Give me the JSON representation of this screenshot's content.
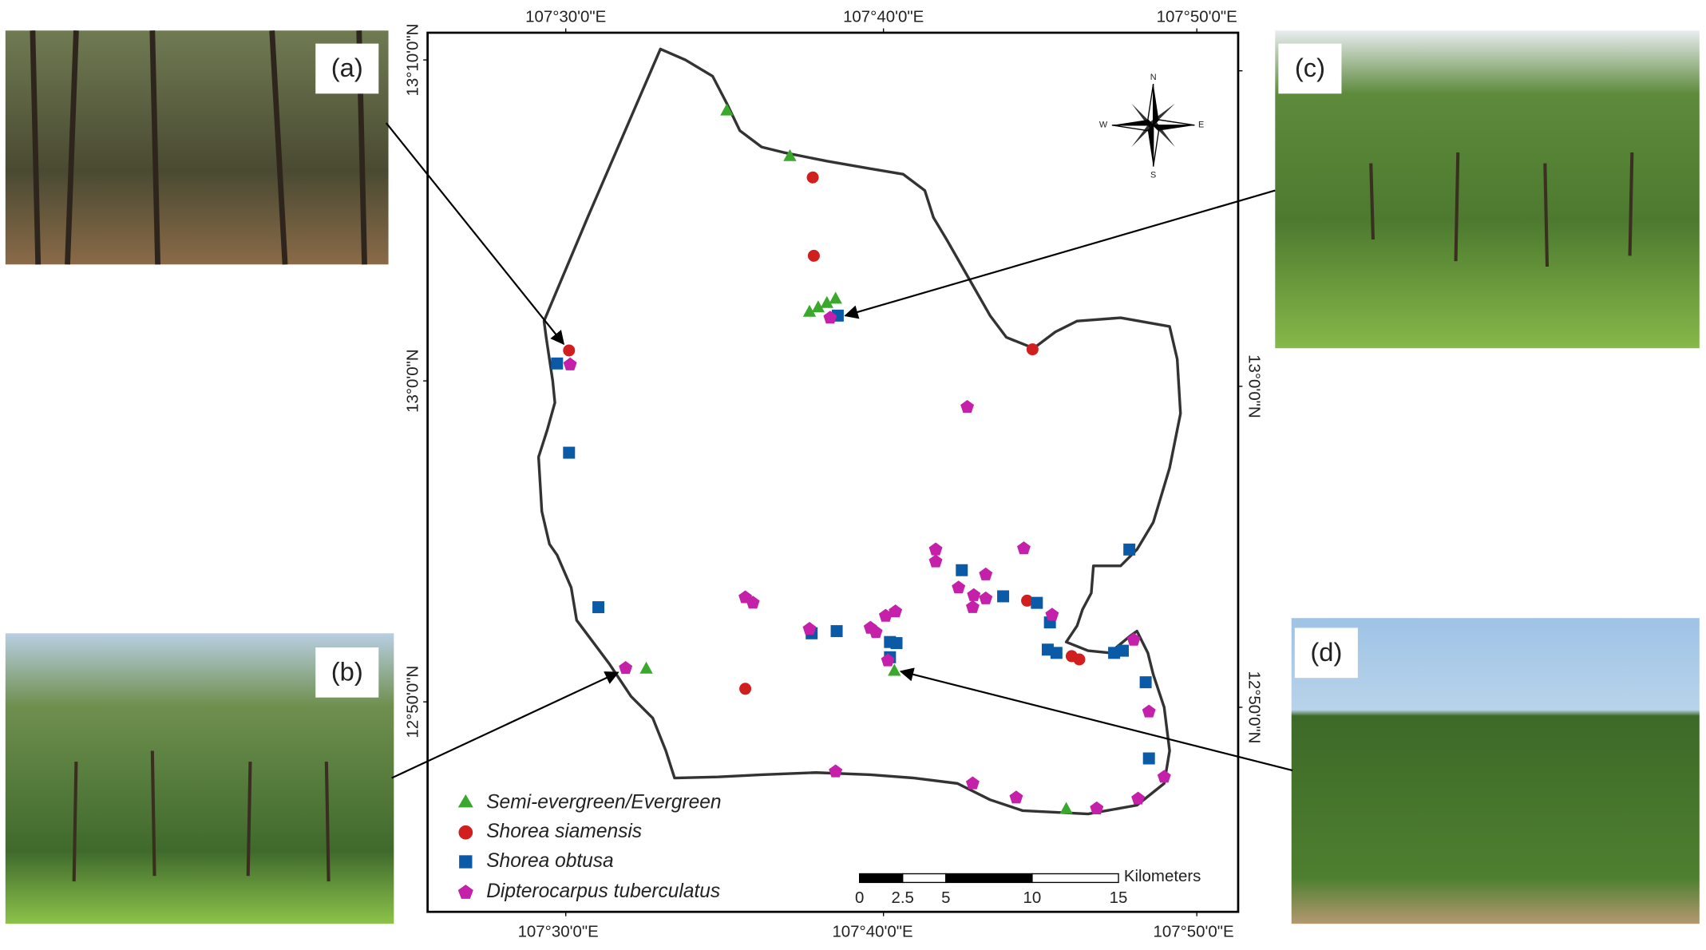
{
  "photos": [
    {
      "label": "(a)"
    },
    {
      "label": "(b)"
    },
    {
      "label": "(c)"
    },
    {
      "label": "(d)"
    }
  ],
  "graticule": {
    "top": [
      "107°30'0\"E",
      "107°40'0\"E",
      "107°50'0\"E"
    ],
    "bottom": [
      "107°30'0\"E",
      "107°40'0\"E",
      "107°50'0\"E"
    ],
    "left": [
      "13°10'0\"N",
      "13°0'0\"N",
      "12°50'0\"N"
    ],
    "right": [
      "13°0'0\"N",
      "12°50'0\"N"
    ]
  },
  "compass": {
    "n": "N",
    "s": "S",
    "e": "E",
    "w": "W"
  },
  "legend": [
    "Semi-evergreen/Evergreen",
    "Shorea siamensis",
    "Shorea obtusa",
    "Dipterocarpus tuberculatus"
  ],
  "scale": {
    "labels": [
      0,
      2.5,
      5,
      10,
      15
    ],
    "unit": "Kilometers"
  }
}
